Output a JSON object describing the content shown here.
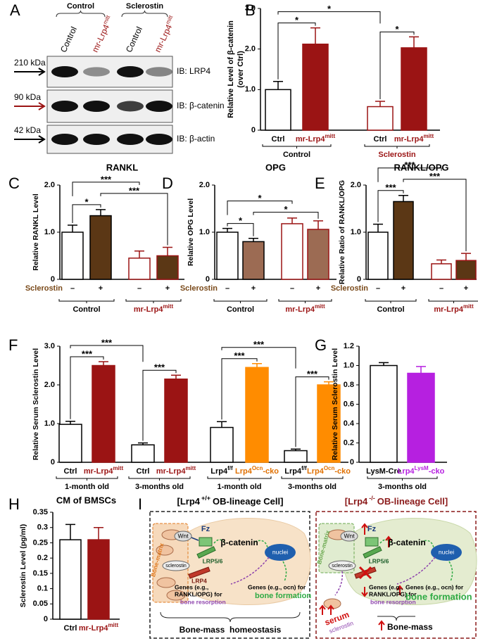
{
  "panel_letters": [
    "A",
    "B",
    "C",
    "D",
    "E",
    "F",
    "G",
    "H",
    "I"
  ],
  "blot": {
    "groups": [
      "Control",
      "Sclerostin"
    ],
    "lanes": [
      "Control",
      {
        "text": "mr-Lrp4",
        "sup": "mitt"
      },
      "Control",
      {
        "text": "mr-Lrp4",
        "sup": "mitt"
      }
    ],
    "lane_colors": [
      "#000000",
      "#9b1414",
      "#000000",
      "#9b1414"
    ],
    "markers": [
      "210 kDa",
      "90 kDa",
      "42 kDa"
    ],
    "marker_colors": [
      "#000000",
      "#9b1414",
      "#000000"
    ],
    "antibodies": [
      "IB: LRP4",
      "IB: β-catenin",
      "IB: β-actin"
    ]
  },
  "chart_data": [
    {
      "type": "bar",
      "y_label": [
        "Relative Level of β-catenin",
        "(over Ctrl)"
      ],
      "categories": [
        "Ctrl",
        {
          "text": "mr-Lrp4",
          "sup": "mitt"
        },
        "Ctrl",
        {
          "text": "mr-Lrp4",
          "sup": "mitt"
        }
      ],
      "category_colors": [
        "#000000",
        "#9b1414",
        "#000000",
        "#9b1414"
      ],
      "groups": [
        "Control",
        "Sclerostin"
      ],
      "group_colors": [
        "#000000",
        "#9b1414"
      ],
      "values": [
        1.0,
        2.12,
        0.58,
        2.03
      ],
      "errors": [
        0.2,
        0.4,
        0.13,
        0.27
      ],
      "colors": [
        "#ffffff",
        "#9b1414",
        "#ffffff",
        "#9b1414"
      ],
      "edge_colors": [
        "#000000",
        "#9b1414",
        "#9b1414",
        "#9b1414"
      ],
      "ylim": [
        0,
        3
      ],
      "yticks": [
        0,
        {
          "value": 1,
          "label": "1.0"
        },
        {
          "value": 2,
          "label": "2.0"
        },
        {
          "value": 3,
          "label": "3.0"
        }
      ],
      "significance": [
        {
          "bars": [
            0,
            1
          ],
          "label": "*"
        },
        {
          "bars": [
            2,
            3
          ],
          "label": "*"
        },
        {
          "bars": [
            0,
            2
          ],
          "label": "*"
        }
      ]
    },
    {
      "type": "bar",
      "title": "RANKL",
      "y_label": "Relative RANKL Level",
      "x_label": "Sclerostin",
      "x_label_color": "#7a4a1a",
      "categories": [
        "–",
        "+",
        "–",
        "+"
      ],
      "category_colors": [
        "#000000",
        "#000000",
        "#000000",
        "#000000"
      ],
      "groups": [
        "Control",
        {
          "text": "mr-Lrp4",
          "sup": "mitt"
        }
      ],
      "group_colors": [
        "#000000",
        "#9b1414"
      ],
      "values": [
        1.0,
        1.35,
        0.45,
        0.5
      ],
      "errors": [
        0.15,
        0.13,
        0.15,
        0.18
      ],
      "colors": [
        "#ffffff",
        "#5b3715",
        "#ffffff",
        "#5b3715"
      ],
      "edge_colors": [
        "#000000",
        "#000000",
        "#9b1414",
        "#9b1414"
      ],
      "ylim": [
        0,
        2
      ],
      "yticks": [
        0,
        {
          "value": 1,
          "label": "1.0"
        },
        {
          "value": 2,
          "label": "2.0"
        }
      ],
      "significance": [
        {
          "bars": [
            0,
            1
          ],
          "label": "*"
        },
        {
          "bars": [
            1,
            3
          ],
          "label": "***"
        },
        {
          "bars": [
            0,
            2
          ],
          "label": "***"
        }
      ]
    },
    {
      "type": "bar",
      "title": "OPG",
      "y_label": "Relative OPG Level",
      "x_label": "Sclerostin",
      "x_label_color": "#7a4a1a",
      "categories": [
        "–",
        "+",
        "–",
        "+"
      ],
      "category_colors": [
        "#000000",
        "#000000",
        "#000000",
        "#000000"
      ],
      "groups": [
        "Control",
        {
          "text": "mr-Lrp4",
          "sup": "mitt"
        }
      ],
      "group_colors": [
        "#000000",
        "#9b1414"
      ],
      "values": [
        1.0,
        0.8,
        1.18,
        1.06
      ],
      "errors": [
        0.08,
        0.07,
        0.12,
        0.18
      ],
      "colors": [
        "#ffffff",
        "#9c6b53",
        "#ffffff",
        "#9c6b53"
      ],
      "edge_colors": [
        "#000000",
        "#000000",
        "#9b1414",
        "#9b1414"
      ],
      "ylim": [
        0,
        2
      ],
      "yticks": [
        0,
        {
          "value": 1,
          "label": "1.0"
        },
        {
          "value": 2,
          "label": "2.0"
        }
      ],
      "significance": [
        {
          "bars": [
            0,
            1
          ],
          "label": "*"
        },
        {
          "bars": [
            1,
            3
          ],
          "label": "*"
        },
        {
          "bars": [
            0,
            2
          ],
          "label": "*"
        }
      ]
    },
    {
      "type": "bar",
      "title": "RANKL/OPG",
      "y_label": "Relative Ratio of RANKL/OPG",
      "x_label": "Sclerostin",
      "x_label_color": "#7a4a1a",
      "categories": [
        "–",
        "+",
        "–",
        "+"
      ],
      "category_colors": [
        "#000000",
        "#000000",
        "#000000",
        "#000000"
      ],
      "groups": [
        "Control",
        {
          "text": "mr-Lrp4",
          "sup": "mitt"
        }
      ],
      "group_colors": [
        "#000000",
        "#9b1414"
      ],
      "values": [
        1.0,
        1.65,
        0.33,
        0.4
      ],
      "errors": [
        0.17,
        0.13,
        0.08,
        0.15
      ],
      "colors": [
        "#ffffff",
        "#5b3715",
        "#ffffff",
        "#5b3715"
      ],
      "edge_colors": [
        "#000000",
        "#000000",
        "#9b1414",
        "#9b1414"
      ],
      "ylim": [
        0,
        2
      ],
      "yticks": [
        0,
        {
          "value": 1,
          "label": "1.0"
        },
        {
          "value": 2,
          "label": "2.0"
        }
      ],
      "significance": [
        {
          "bars": [
            0,
            1
          ],
          "label": "***"
        },
        {
          "bars": [
            1,
            3
          ],
          "label": "***"
        },
        {
          "bars": [
            0,
            2
          ],
          "label": "***"
        }
      ]
    },
    {
      "type": "bar",
      "y_label": "Relative Serum Sclerostin Level",
      "categories": [
        "Ctrl",
        {
          "text": "mr-Lrp4",
          "sup": "mitt"
        },
        "Ctrl",
        {
          "text": "mr-Lrp4",
          "sup": "mitt"
        },
        {
          "text": "Lrp4",
          "sup": "f/f"
        },
        {
          "text": "Lrp4",
          "sup": "Ocn",
          "rest": "-cko"
        },
        {
          "text": "Lrp4",
          "sup": "f/f"
        },
        {
          "text": "Lrp4",
          "sup": "Ocn",
          "rest": "-cko"
        }
      ],
      "category_colors": [
        "#000000",
        "#9b1414",
        "#000000",
        "#9b1414",
        "#000000",
        "#e07000",
        "#000000",
        "#e07000"
      ],
      "groups": [
        "1-month old",
        "3-months old",
        "1-month old",
        "3-months old"
      ],
      "group_colors": [
        "#000000",
        "#000000",
        "#000000",
        "#000000"
      ],
      "values": [
        0.98,
        2.5,
        0.45,
        2.15,
        0.9,
        2.45,
        0.3,
        2.0
      ],
      "errors": [
        0.08,
        0.1,
        0.05,
        0.1,
        0.15,
        0.1,
        0.04,
        0.08
      ],
      "colors": [
        "#ffffff",
        "#9b1414",
        "#ffffff",
        "#9b1414",
        "#ffffff",
        "#ff8c00",
        "#ffffff",
        "#ff8c00"
      ],
      "edge_colors": [
        "#000000",
        "#9b1414",
        "#000000",
        "#9b1414",
        "#000000",
        "#ff8c00",
        "#000000",
        "#ff8c00"
      ],
      "ylim": [
        0,
        3
      ],
      "yticks": [
        0,
        {
          "value": 1,
          "label": "1.0"
        },
        {
          "value": 2,
          "label": "2.0"
        },
        {
          "value": 3,
          "label": "3.0"
        }
      ],
      "significance": [
        {
          "bars": [
            0,
            1
          ],
          "label": "***"
        },
        {
          "bars": [
            2,
            3
          ],
          "label": "***"
        },
        {
          "bars": [
            0,
            2
          ],
          "label": "***"
        },
        {
          "bars": [
            4,
            5
          ],
          "label": "***"
        },
        {
          "bars": [
            6,
            7
          ],
          "label": "***"
        },
        {
          "bars": [
            4,
            6
          ],
          "label": "***"
        }
      ]
    },
    {
      "type": "bar",
      "y_label": "Relative Serum Sclerostin Level",
      "categories": [
        "LysM-Cre",
        {
          "text": "Lrp4",
          "sup": "LysM",
          "rest": "-cko"
        }
      ],
      "category_colors": [
        "#000000",
        "#b620e0"
      ],
      "groups": [
        "3-months old"
      ],
      "group_colors": [
        "#000000"
      ],
      "values": [
        1.0,
        0.92
      ],
      "errors": [
        0.03,
        0.07
      ],
      "colors": [
        "#ffffff",
        "#b620e0"
      ],
      "edge_colors": [
        "#000000",
        "#b620e0"
      ],
      "ylim": [
        0,
        1.2
      ],
      "yticks": [
        0,
        0.2,
        0.4,
        0.6,
        0.8,
        {
          "value": 1,
          "label": "1.0"
        },
        1.2
      ]
    },
    {
      "type": "bar",
      "title": "CM of BMSCs",
      "y_label": "Sclerostin Level (pg/ml)",
      "categories": [
        "Ctrl",
        {
          "text": "mr-Lrp4",
          "sup": "mitt"
        }
      ],
      "category_colors": [
        "#000000",
        "#9b1414"
      ],
      "values": [
        0.26,
        0.26
      ],
      "errors": [
        0.05,
        0.04
      ],
      "colors": [
        "#ffffff",
        "#9b1414"
      ],
      "edge_colors": [
        "#000000",
        "#9b1414"
      ],
      "ylim": [
        0,
        0.35
      ],
      "yticks": [
        0,
        0.05,
        0.1,
        0.15,
        0.2,
        0.25,
        0.3,
        0.35
      ]
    }
  ],
  "diagram": {
    "left": {
      "title": {
        "pre": "[Lrp4",
        "sup": "+/+",
        "post": "OB-lineage Cell]"
      },
      "matrix": "Bone-matrix",
      "wnt": "Wnt",
      "sclerostin": "sclerostin",
      "fz": "Fz",
      "lrp56": "LRP5/6",
      "lrp4": "LRP4",
      "catenin": "β-catenin",
      "nuclei": "nuclei",
      "resorption_genes": [
        "Genes (e.g.,",
        "RANKL/OPG) for"
      ],
      "resorption": "bone resorption",
      "formation_genes": "Genes (e.g., ocn) for",
      "formation": "bone formation",
      "outcome": "Bone-mass  homeostasis"
    },
    "right": {
      "title": {
        "pre": "[Lrp4",
        "sup": "-/-",
        "post": "OB-lineage Cell]"
      },
      "matrix": "Bone-matrix",
      "wnt": "Wnt",
      "sclerostin": "sclerostin",
      "fz": "Fz",
      "lrp56": "LRP5/6",
      "catenin": "β-catenin",
      "nuclei": "nuclei",
      "resorption_genes": [
        "Genes (e.g.,",
        "RANKL/OPG) for"
      ],
      "resorption": "bone resorption",
      "formation_genes": "Genes (e.g., ocn) for",
      "formation": "bone formation",
      "serum": "serum",
      "serum_sclerostin": "sclerostin",
      "outcome": "Bone-mass"
    }
  }
}
